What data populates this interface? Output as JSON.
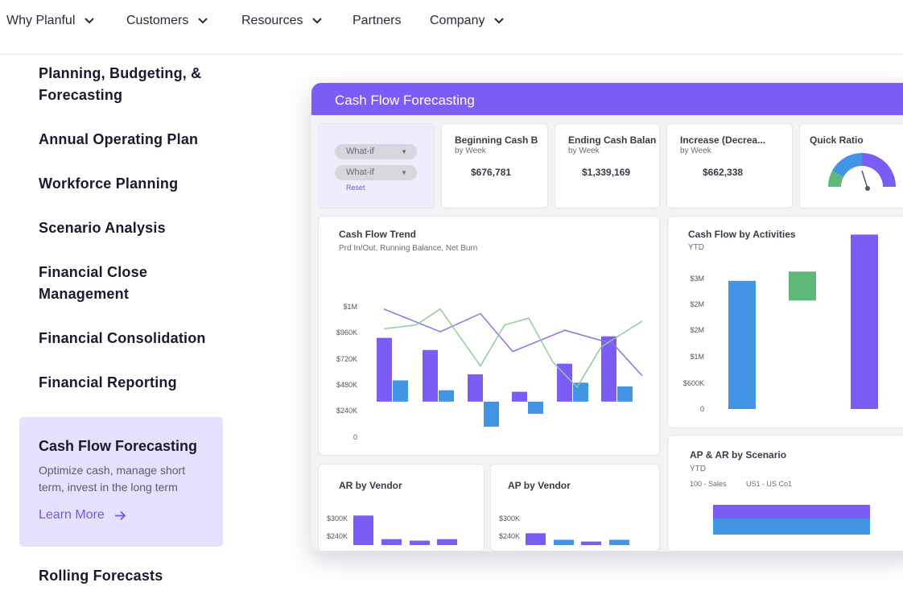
{
  "nav": {
    "items": [
      {
        "label": "Why Planful",
        "has_chevron": true
      },
      {
        "label": "Customers",
        "has_chevron": true
      },
      {
        "label": "Resources",
        "has_chevron": true
      },
      {
        "label": "Partners",
        "has_chevron": false
      },
      {
        "label": "Company",
        "has_chevron": true
      }
    ]
  },
  "menu": {
    "items": [
      "Planning, Budgeting, &",
      "Forecasting",
      "Annual Operating Plan",
      "Workforce Planning",
      "Scenario Analysis",
      "Financial Close",
      "Management",
      "Financial Consolidation",
      "Financial Reporting",
      "Rolling Forecasts"
    ],
    "active_card": {
      "title": "Cash Flow Forecasting",
      "desc_line1": "Optimize cash, manage short",
      "desc_line2": "term, invest in the long term",
      "link": "Learn More"
    }
  },
  "dashboard": {
    "title": "Cash Flow Forecasting",
    "filters": {
      "pill1": "What-if",
      "pill2": "What-if",
      "reset": "Reset"
    },
    "kpis": [
      {
        "title": "Beginning Cash B",
        "sub": "by Week",
        "value": "$676,781"
      },
      {
        "title": "Ending Cash Balan",
        "sub": "by Week",
        "value": "$1,339,169"
      },
      {
        "title": "Increase (Decrea...",
        "sub": "by Week",
        "value": "$662,338"
      }
    ],
    "quick_ratio": {
      "title": "Quick Ratio",
      "level": 0.72
    },
    "trend": {
      "title": "Cash Flow Trend",
      "sub": "Prd In/Out, Running Balance, Net Burn"
    },
    "activities": {
      "title": "Cash Flow by Activities",
      "sub": "YTD"
    },
    "ar_vendor": {
      "title": "AR by Vendor"
    },
    "ap_vendor": {
      "title": "AP by Vendor"
    },
    "scenario": {
      "title": "AP & AR by Scenario",
      "sub": "YTD",
      "legend1": "100 - Sales",
      "legend2": "US1 - US Co1"
    },
    "colors": {
      "purple": "#7b5cf5",
      "blue": "#4295e5",
      "green": "#5fb878",
      "line_green": "#8fcc9b",
      "line_purple": "#8c72e8"
    }
  },
  "chart_data": [
    {
      "type": "bar",
      "title": "Cash Flow Trend",
      "subtitle": "Prd In/Out, Running Balance, Net Burn",
      "ytick_labels": [
        "0",
        "$240K",
        "$480K",
        "$720K",
        "$960K",
        "$1M"
      ],
      "ylim": [
        -500000,
        1250000
      ],
      "series": [
        {
          "values": [
            840000,
            680000,
            360000,
            130000,
            500000,
            860000
          ]
        },
        {
          "values": [
            280000,
            150000,
            -330000,
            -160000,
            250000,
            200000
          ]
        }
      ],
      "line1": [
        1220000,
        920000,
        1160000,
        660000,
        940000,
        760000,
        340000
      ],
      "line2": [
        960000,
        1010000,
        1220000,
        470000,
        1010000,
        1100000,
        520000,
        190000,
        720000,
        1060000
      ]
    },
    {
      "type": "bar",
      "title": "Cash Flow by Activities",
      "subtitle": "YTD",
      "ytick_labels": [
        "0",
        "$600K",
        "$1M",
        "$2M",
        "$2M",
        "$3M"
      ],
      "ylim": [
        0,
        3000000
      ],
      "values": [
        2500000,
        2650000,
        2900000
      ]
    },
    {
      "type": "bar",
      "title": "AR by Vendor",
      "ytick_labels": [
        "$240K",
        "$300K"
      ],
      "values": [
        310000,
        230000,
        225000,
        230000
      ]
    },
    {
      "type": "bar",
      "title": "AP by Vendor",
      "ytick_labels": [
        "$240K",
        "$300K"
      ],
      "values": [
        250000,
        228000,
        222000,
        228000
      ]
    }
  ]
}
